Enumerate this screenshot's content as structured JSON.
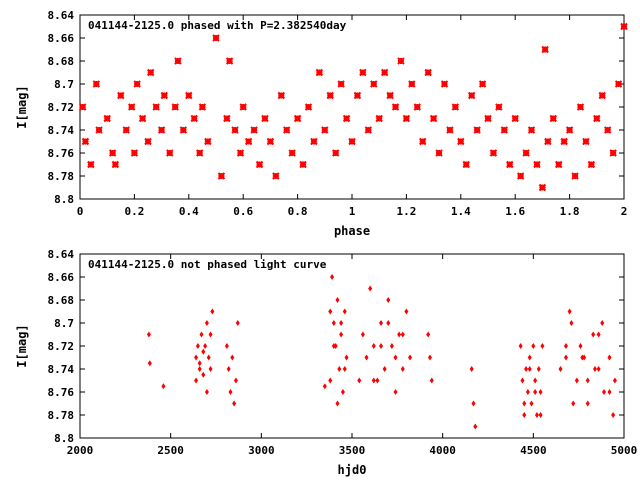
{
  "chart_data": [
    {
      "type": "scatter",
      "title": "041144-2125.0 phased with P=2.382540day",
      "xlabel": "phase",
      "ylabel": "I[mag]",
      "xlim": [
        0,
        2
      ],
      "ylim": [
        8.64,
        8.8
      ],
      "y_inverted": true,
      "grid": false,
      "marker": "cross",
      "color": "#ff0000",
      "x_ticks": [
        "0",
        "0.2",
        "0.4",
        "0.6",
        "0.8",
        "1",
        "1.2",
        "1.4",
        "1.6",
        "1.8",
        "2"
      ],
      "y_ticks": [
        "8.64",
        "8.66",
        "8.68",
        "8.7",
        "8.72",
        "8.74",
        "8.76",
        "8.78",
        "8.8"
      ],
      "x": [
        0.01,
        0.02,
        0.04,
        0.06,
        0.07,
        0.1,
        0.12,
        0.13,
        0.15,
        0.17,
        0.19,
        0.2,
        0.21,
        0.23,
        0.25,
        0.26,
        0.28,
        0.3,
        0.31,
        0.33,
        0.35,
        0.36,
        0.38,
        0.4,
        0.42,
        0.44,
        0.45,
        0.47,
        0.5,
        0.52,
        0.54,
        0.55,
        0.57,
        0.59,
        0.6,
        0.62,
        0.64,
        0.66,
        0.68,
        0.7,
        0.72,
        0.74,
        0.76,
        0.78,
        0.8,
        0.82,
        0.84,
        0.86,
        0.88,
        0.9,
        0.92,
        0.94,
        0.96,
        0.98,
        1.0,
        1.02,
        1.04,
        1.06,
        1.08,
        1.1,
        1.12,
        1.14,
        1.16,
        1.18,
        1.2,
        1.22,
        1.24,
        1.26,
        1.28,
        1.3,
        1.32,
        1.34,
        1.36,
        1.38,
        1.4,
        1.42,
        1.44,
        1.46,
        1.48,
        1.5,
        1.52,
        1.54,
        1.56,
        1.58,
        1.6,
        1.62,
        1.64,
        1.66,
        1.68,
        1.7,
        1.71,
        1.72,
        1.74,
        1.76,
        1.78,
        1.8,
        1.82,
        1.84,
        1.86,
        1.88,
        1.9,
        1.92,
        1.94,
        1.96,
        1.98,
        2.0
      ],
      "y": [
        8.72,
        8.75,
        8.77,
        8.7,
        8.74,
        8.73,
        8.76,
        8.77,
        8.71,
        8.74,
        8.72,
        8.76,
        8.7,
        8.73,
        8.75,
        8.69,
        8.72,
        8.74,
        8.71,
        8.76,
        8.72,
        8.68,
        8.74,
        8.71,
        8.73,
        8.76,
        8.72,
        8.75,
        8.66,
        8.78,
        8.73,
        8.68,
        8.74,
        8.76,
        8.72,
        8.75,
        8.74,
        8.77,
        8.73,
        8.75,
        8.78,
        8.71,
        8.74,
        8.76,
        8.73,
        8.77,
        8.72,
        8.75,
        8.69,
        8.74,
        8.71,
        8.76,
        8.7,
        8.73,
        8.75,
        8.71,
        8.69,
        8.74,
        8.7,
        8.73,
        8.69,
        8.71,
        8.72,
        8.68,
        8.73,
        8.7,
        8.72,
        8.75,
        8.69,
        8.73,
        8.76,
        8.7,
        8.74,
        8.72,
        8.75,
        8.77,
        8.71,
        8.74,
        8.7,
        8.73,
        8.76,
        8.72,
        8.74,
        8.77,
        8.73,
        8.78,
        8.76,
        8.74,
        8.77,
        8.79,
        8.67,
        8.75,
        8.73,
        8.77,
        8.75,
        8.74,
        8.78,
        8.72,
        8.75,
        8.77,
        8.73,
        8.71,
        8.74,
        8.76,
        8.7,
        8.65
      ]
    },
    {
      "type": "scatter",
      "title": "041144-2125.0 not phased light curve",
      "xlabel": "hjd0",
      "ylabel": "I[mag]",
      "xlim": [
        2000,
        5000
      ],
      "ylim": [
        8.64,
        8.8
      ],
      "y_inverted": true,
      "grid": false,
      "marker": "diamond",
      "color": "#ff0000",
      "x_ticks": [
        "2000",
        "2500",
        "3000",
        "3500",
        "4000",
        "4500",
        "5000"
      ],
      "y_ticks": [
        "8.64",
        "8.66",
        "8.68",
        "8.7",
        "8.72",
        "8.74",
        "8.76",
        "8.78",
        "8.8"
      ],
      "x": [
        2380,
        2385,
        2460,
        2640,
        2650,
        2660,
        2670,
        2680,
        2690,
        2700,
        2710,
        2720,
        2730,
        2640,
        2660,
        2680,
        2700,
        2720,
        2810,
        2820,
        2830,
        2840,
        2850,
        2860,
        2870,
        3350,
        3380,
        3390,
        3400,
        3410,
        3420,
        3430,
        3440,
        3450,
        3460,
        3470,
        3380,
        3400,
        3420,
        3440,
        3460,
        3540,
        3560,
        3580,
        3600,
        3620,
        3640,
        3660,
        3680,
        3700,
        3720,
        3740,
        3760,
        3780,
        3800,
        3820,
        3620,
        3660,
        3700,
        3740,
        3780,
        3920,
        3930,
        3940,
        4160,
        4170,
        4180,
        4430,
        4440,
        4450,
        4460,
        4470,
        4480,
        4490,
        4500,
        4510,
        4520,
        4530,
        4540,
        4550,
        4450,
        4480,
        4510,
        4540,
        4650,
        4680,
        4710,
        4740,
        4770,
        4800,
        4830,
        4860,
        4890,
        4920,
        4950,
        4680,
        4720,
        4760,
        4800,
        4840,
        4880,
        4920,
        4700,
        4780,
        4860,
        4940
      ],
      "y": [
        8.71,
        8.735,
        8.755,
        8.73,
        8.72,
        8.74,
        8.71,
        8.745,
        8.72,
        8.7,
        8.73,
        8.71,
        8.69,
        8.75,
        8.735,
        8.725,
        8.76,
        8.74,
        8.72,
        8.74,
        8.76,
        8.73,
        8.77,
        8.75,
        8.7,
        8.755,
        8.69,
        8.66,
        8.7,
        8.72,
        8.68,
        8.74,
        8.71,
        8.76,
        8.69,
        8.73,
        8.75,
        8.72,
        8.77,
        8.7,
        8.74,
        8.75,
        8.71,
        8.73,
        8.67,
        8.72,
        8.75,
        8.7,
        8.74,
        8.68,
        8.72,
        8.76,
        8.71,
        8.74,
        8.69,
        8.73,
        8.75,
        8.72,
        8.7,
        8.73,
        8.71,
        8.71,
        8.73,
        8.75,
        8.74,
        8.77,
        8.79,
        8.72,
        8.75,
        8.78,
        8.74,
        8.76,
        8.73,
        8.77,
        8.72,
        8.75,
        8.78,
        8.74,
        8.76,
        8.72,
        8.77,
        8.74,
        8.76,
        8.78,
        8.74,
        8.72,
        8.7,
        8.75,
        8.73,
        8.77,
        8.71,
        8.74,
        8.76,
        8.73,
        8.75,
        8.73,
        8.77,
        8.72,
        8.75,
        8.74,
        8.7,
        8.76,
        8.69,
        8.73,
        8.71,
        8.78
      ]
    }
  ]
}
